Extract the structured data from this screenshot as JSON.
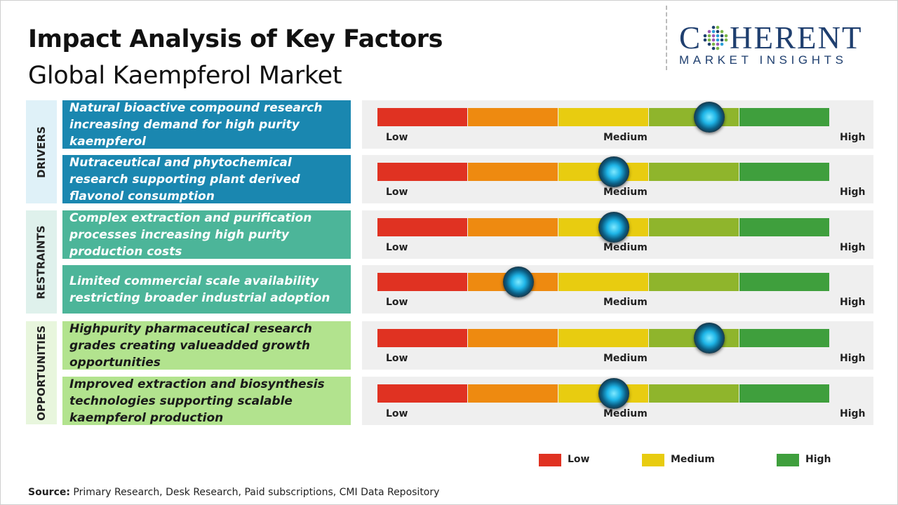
{
  "title": "Impact Analysis of Key Factors",
  "subtitle": "Global Kaempferol Market",
  "logo": {
    "main": "COHERENT",
    "sub": "MARKET INSIGHTS"
  },
  "colors": {
    "drivers_factor": "#1a87b0",
    "restraints_factor": "#4cb599",
    "opportunities_factor": "#b2e38e",
    "drivers_cat": "#dff1f8",
    "restraints_cat": "#dff1ec",
    "opportunities_cat": "#e8f6dd",
    "segments": [
      "#e03222",
      "#ee8a10",
      "#e8cc10",
      "#8fb52c",
      "#3f9f3d"
    ]
  },
  "chart_data": {
    "type": "table",
    "scale": [
      "Low",
      "Medium",
      "High"
    ],
    "categories": [
      {
        "name": "DRIVERS",
        "factors": [
          {
            "text": "Natural bioactive compound research increasing demand for high purity kaempferol",
            "impact": 0.73
          },
          {
            "text": "Nutraceutical and phytochemical research supporting plant derived flavonol consumption",
            "impact": 0.52
          }
        ]
      },
      {
        "name": "RESTRAINTS",
        "factors": [
          {
            "text": "Complex extraction and purification processes increasing high purity production costs",
            "impact": 0.52
          },
          {
            "text": "Limited commercial scale availability restricting broader industrial adoption",
            "impact": 0.31
          }
        ]
      },
      {
        "name": "OPPORTUNITIES",
        "factors": [
          {
            "text": "Highpurity pharmaceutical research grades creating valueadded growth opportunities",
            "impact": 0.73
          },
          {
            "text": "Improved extraction and biosynthesis technologies supporting scalable kaempferol production",
            "impact": 0.52
          }
        ]
      }
    ],
    "legend": [
      {
        "label": "Low",
        "color": "#e03222"
      },
      {
        "label": "Medium",
        "color": "#e8cc10"
      },
      {
        "label": "High",
        "color": "#3f9f3d"
      }
    ]
  },
  "source": {
    "label": "Source:",
    "text": " Primary Research, Desk Research, Paid subscriptions, CMI Data Repository"
  }
}
